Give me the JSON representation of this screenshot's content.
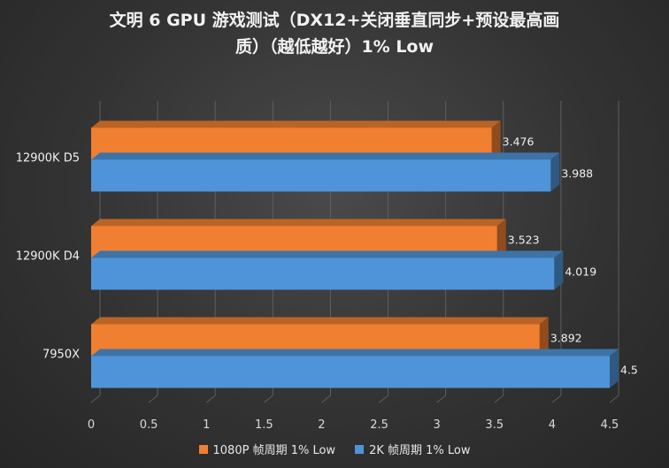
{
  "chart_data": {
    "type": "bar",
    "orientation": "horizontal",
    "title": [
      "文明 6 GPU 游戏测试（DX12+关闭垂直同步+预设最高画",
      "质）（越低越好）1% Low"
    ],
    "categories": [
      "12900K D5",
      "12900K D4",
      "7950X"
    ],
    "series": [
      {
        "name": "1080P 帧周期 1% Low",
        "color": "#f07f31",
        "values": [
          3.476,
          3.523,
          3.892
        ]
      },
      {
        "name": "2K 帧周期 1% Low",
        "color": "#4f94d8",
        "values": [
          3.988,
          4.019,
          4.5
        ]
      }
    ],
    "xlim": [
      0,
      4.5
    ],
    "xticks": [
      "0",
      "0.5",
      "1",
      "1.5",
      "2",
      "2.5",
      "3",
      "3.5",
      "4",
      "4.5"
    ],
    "grid": true,
    "legend": "bottom"
  }
}
